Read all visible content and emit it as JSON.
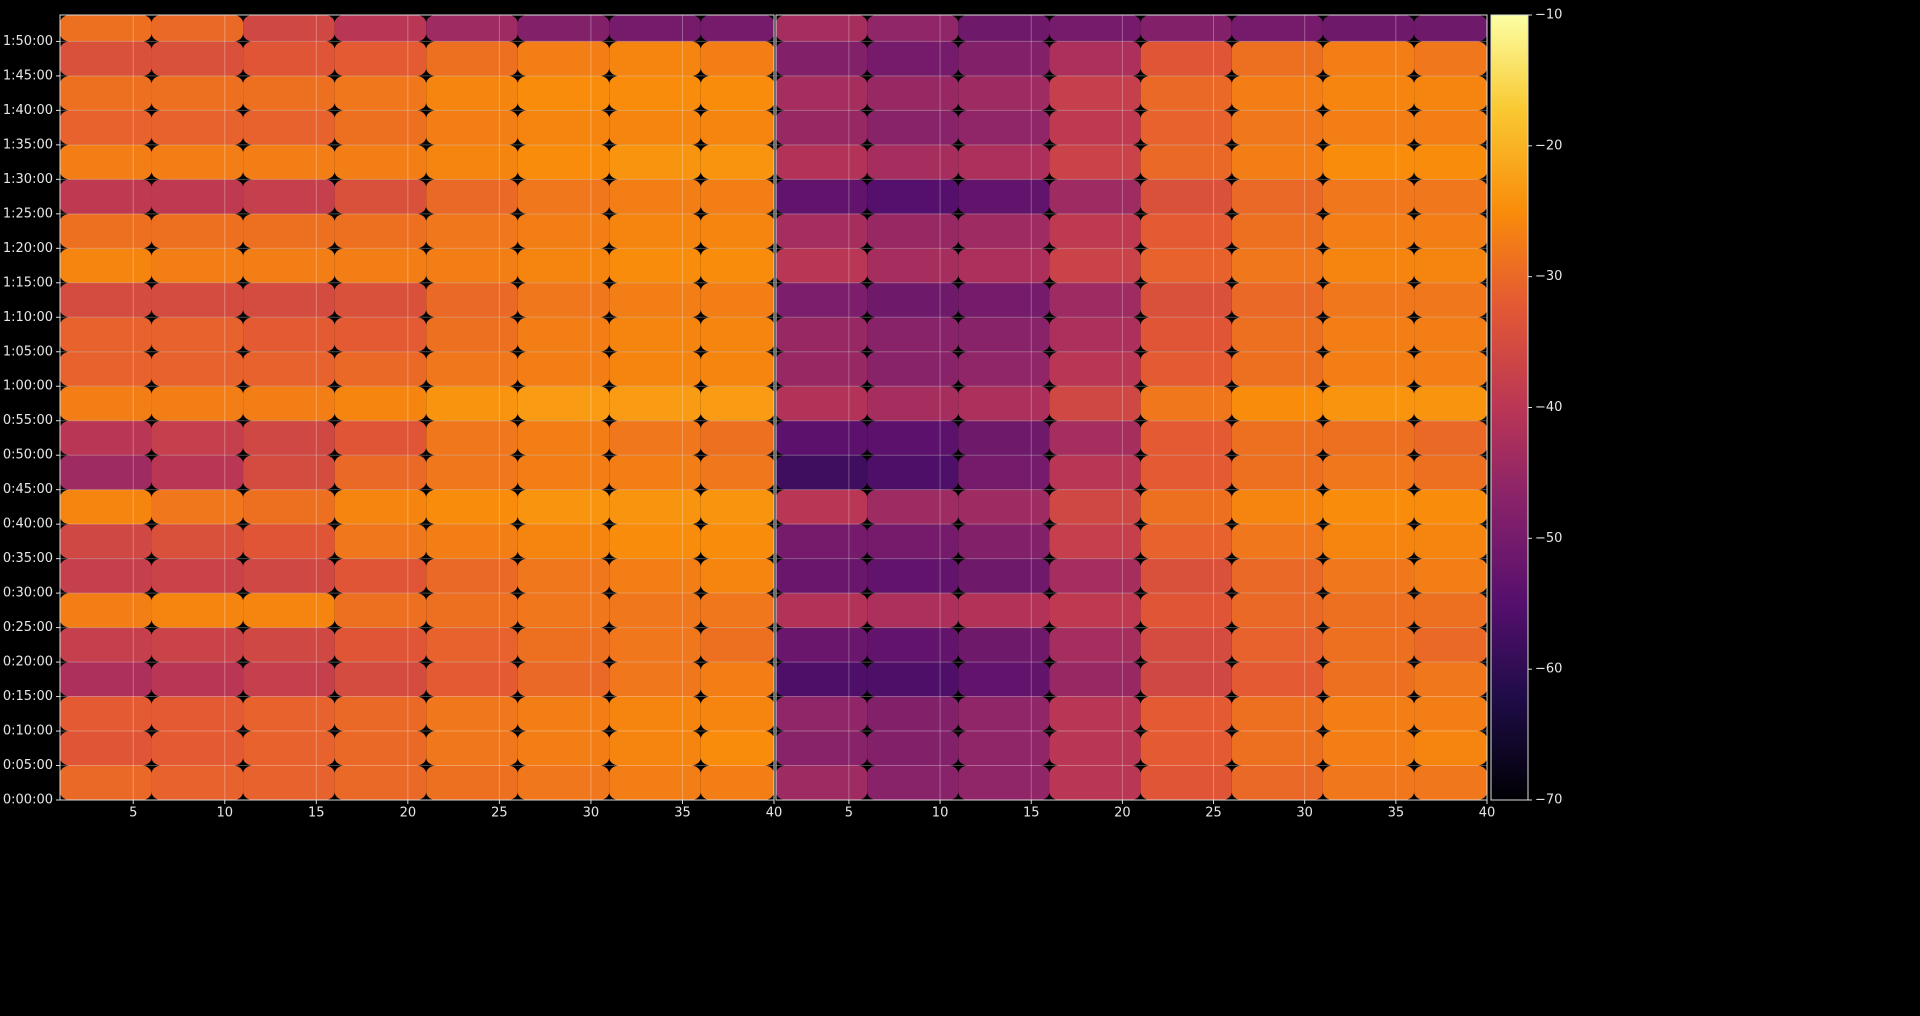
{
  "chart_data": {
    "type": "heatmap",
    "colormap": "inferno",
    "grid": true,
    "ylim": [
      0,
      6830
    ],
    "ybins": [
      0,
      300,
      600,
      900,
      1200,
      1500,
      1800,
      2100,
      2400,
      2700,
      3000,
      3300,
      3600,
      3900,
      4200,
      4500,
      4800,
      5100,
      5400,
      5700,
      6000,
      6300,
      6600,
      6830
    ],
    "yticks": [
      {
        "value": 0,
        "label": "0:00:00"
      },
      {
        "value": 300,
        "label": "0:05:00"
      },
      {
        "value": 600,
        "label": "0:10:00"
      },
      {
        "value": 900,
        "label": "0:15:00"
      },
      {
        "value": 1200,
        "label": "0:20:00"
      },
      {
        "value": 1500,
        "label": "0:25:00"
      },
      {
        "value": 1800,
        "label": "0:30:00"
      },
      {
        "value": 2100,
        "label": "0:35:00"
      },
      {
        "value": 2400,
        "label": "0:40:00"
      },
      {
        "value": 2700,
        "label": "0:45:00"
      },
      {
        "value": 3000,
        "label": "0:50:00"
      },
      {
        "value": 3300,
        "label": "0:55:00"
      },
      {
        "value": 3600,
        "label": "1:00:00"
      },
      {
        "value": 3900,
        "label": "1:05:00"
      },
      {
        "value": 4200,
        "label": "1:10:00"
      },
      {
        "value": 4500,
        "label": "1:15:00"
      },
      {
        "value": 4800,
        "label": "1:20:00"
      },
      {
        "value": 5100,
        "label": "1:25:00"
      },
      {
        "value": 5400,
        "label": "1:30:00"
      },
      {
        "value": 5700,
        "label": "1:35:00"
      },
      {
        "value": 6000,
        "label": "1:40:00"
      },
      {
        "value": 6300,
        "label": "1:45:00"
      },
      {
        "value": 6600,
        "label": "1:50:00"
      }
    ],
    "colorbar": {
      "lim": [
        -70,
        -10
      ],
      "ticks": [
        {
          "value": -70,
          "label": "−70"
        },
        {
          "value": -60,
          "label": "−60"
        },
        {
          "value": -50,
          "label": "−50"
        },
        {
          "value": -40,
          "label": "−40"
        },
        {
          "value": -30,
          "label": "−30"
        },
        {
          "value": -20,
          "label": "−20"
        },
        {
          "value": -10,
          "label": "−10"
        }
      ]
    },
    "panels": [
      {
        "xlim": [
          1,
          40
        ],
        "xbins": [
          1,
          6,
          11,
          16,
          21,
          26,
          31,
          36,
          40
        ],
        "xticks": [
          5,
          10,
          15,
          20,
          25,
          30,
          35,
          40
        ],
        "values": [
          [
            -30,
            -31,
            -31,
            -30,
            -29,
            -28,
            -27,
            -27
          ],
          [
            -33,
            -32,
            -31,
            -30,
            -28,
            -27,
            -26,
            -25
          ],
          [
            -32,
            -32,
            -31,
            -30,
            -28,
            -27,
            -26,
            -26
          ],
          [
            -42,
            -40,
            -38,
            -35,
            -32,
            -30,
            -28,
            -27
          ],
          [
            -38,
            -37,
            -36,
            -33,
            -31,
            -29,
            -28,
            -29
          ],
          [
            -27,
            -26,
            -26,
            -29,
            -29,
            -28,
            -28,
            -28
          ],
          [
            -38,
            -37,
            -36,
            -33,
            -30,
            -28,
            -27,
            -26
          ],
          [
            -36,
            -34,
            -33,
            -28,
            -27,
            -26,
            -25,
            -25
          ],
          [
            -26,
            -28,
            -29,
            -26,
            -25,
            -24,
            -24,
            -24
          ],
          [
            -44,
            -40,
            -35,
            -30,
            -28,
            -27,
            -27,
            -28
          ],
          [
            -40,
            -38,
            -36,
            -33,
            -28,
            -27,
            -28,
            -29
          ],
          [
            -27,
            -27,
            -27,
            -26,
            -24,
            -23,
            -23,
            -23
          ],
          [
            -31,
            -31,
            -31,
            -30,
            -28,
            -27,
            -26,
            -26
          ],
          [
            -31,
            -31,
            -32,
            -32,
            -29,
            -27,
            -26,
            -26
          ],
          [
            -35,
            -35,
            -35,
            -34,
            -30,
            -28,
            -27,
            -27
          ],
          [
            -26,
            -27,
            -27,
            -27,
            -27,
            -26,
            -25,
            -25
          ],
          [
            -29,
            -29,
            -29,
            -29,
            -28,
            -27,
            -26,
            -26
          ],
          [
            -39,
            -39,
            -38,
            -34,
            -30,
            -28,
            -27,
            -27
          ],
          [
            -27,
            -27,
            -27,
            -27,
            -26,
            -25,
            -24,
            -24
          ],
          [
            -31,
            -31,
            -31,
            -29,
            -27,
            -26,
            -26,
            -26
          ],
          [
            -29,
            -29,
            -29,
            -28,
            -26,
            -25,
            -25,
            -25
          ],
          [
            -34,
            -34,
            -33,
            -32,
            -29,
            -27,
            -26,
            -27
          ],
          [
            -29,
            -30,
            -36,
            -40,
            -44,
            -48,
            -50,
            -50
          ]
        ]
      },
      {
        "xlim": [
          1,
          40
        ],
        "xbins": [
          1,
          6,
          11,
          16,
          21,
          26,
          31,
          36,
          40
        ],
        "xticks": [
          5,
          10,
          15,
          20,
          25,
          30,
          35,
          40
        ],
        "values": [
          [
            -44,
            -47,
            -46,
            -40,
            -33,
            -30,
            -28,
            -28
          ],
          [
            -47,
            -48,
            -46,
            -40,
            -32,
            -29,
            -27,
            -26
          ],
          [
            -46,
            -48,
            -46,
            -40,
            -32,
            -29,
            -27,
            -27
          ],
          [
            -56,
            -56,
            -53,
            -45,
            -36,
            -32,
            -29,
            -28
          ],
          [
            -52,
            -53,
            -51,
            -43,
            -35,
            -31,
            -29,
            -30
          ],
          [
            -41,
            -42,
            -41,
            -39,
            -33,
            -30,
            -29,
            -29
          ],
          [
            -52,
            -53,
            -51,
            -43,
            -34,
            -30,
            -28,
            -27
          ],
          [
            -50,
            -50,
            -48,
            -38,
            -31,
            -28,
            -26,
            -26
          ],
          [
            -40,
            -44,
            -44,
            -36,
            -29,
            -26,
            -25,
            -25
          ],
          [
            -58,
            -56,
            -50,
            -40,
            -32,
            -29,
            -28,
            -29
          ],
          [
            -54,
            -54,
            -51,
            -43,
            -32,
            -29,
            -29,
            -30
          ],
          [
            -41,
            -43,
            -42,
            -36,
            -28,
            -25,
            -24,
            -24
          ],
          [
            -45,
            -47,
            -46,
            -40,
            -32,
            -29,
            -27,
            -27
          ],
          [
            -45,
            -47,
            -47,
            -42,
            -33,
            -29,
            -27,
            -27
          ],
          [
            -49,
            -51,
            -50,
            -44,
            -34,
            -30,
            -28,
            -28
          ],
          [
            -40,
            -43,
            -42,
            -37,
            -31,
            -28,
            -26,
            -26
          ],
          [
            -43,
            -45,
            -44,
            -39,
            -32,
            -29,
            -27,
            -27
          ],
          [
            -53,
            -55,
            -53,
            -44,
            -34,
            -30,
            -28,
            -28
          ],
          [
            -41,
            -43,
            -42,
            -37,
            -30,
            -27,
            -25,
            -25
          ],
          [
            -45,
            -47,
            -46,
            -39,
            -31,
            -28,
            -27,
            -27
          ],
          [
            -43,
            -45,
            -44,
            -38,
            -30,
            -27,
            -26,
            -26
          ],
          [
            -48,
            -50,
            -48,
            -42,
            -33,
            -29,
            -27,
            -28
          ],
          [
            -43,
            -46,
            -51,
            -50,
            -48,
            -50,
            -51,
            -51
          ]
        ]
      }
    ]
  }
}
